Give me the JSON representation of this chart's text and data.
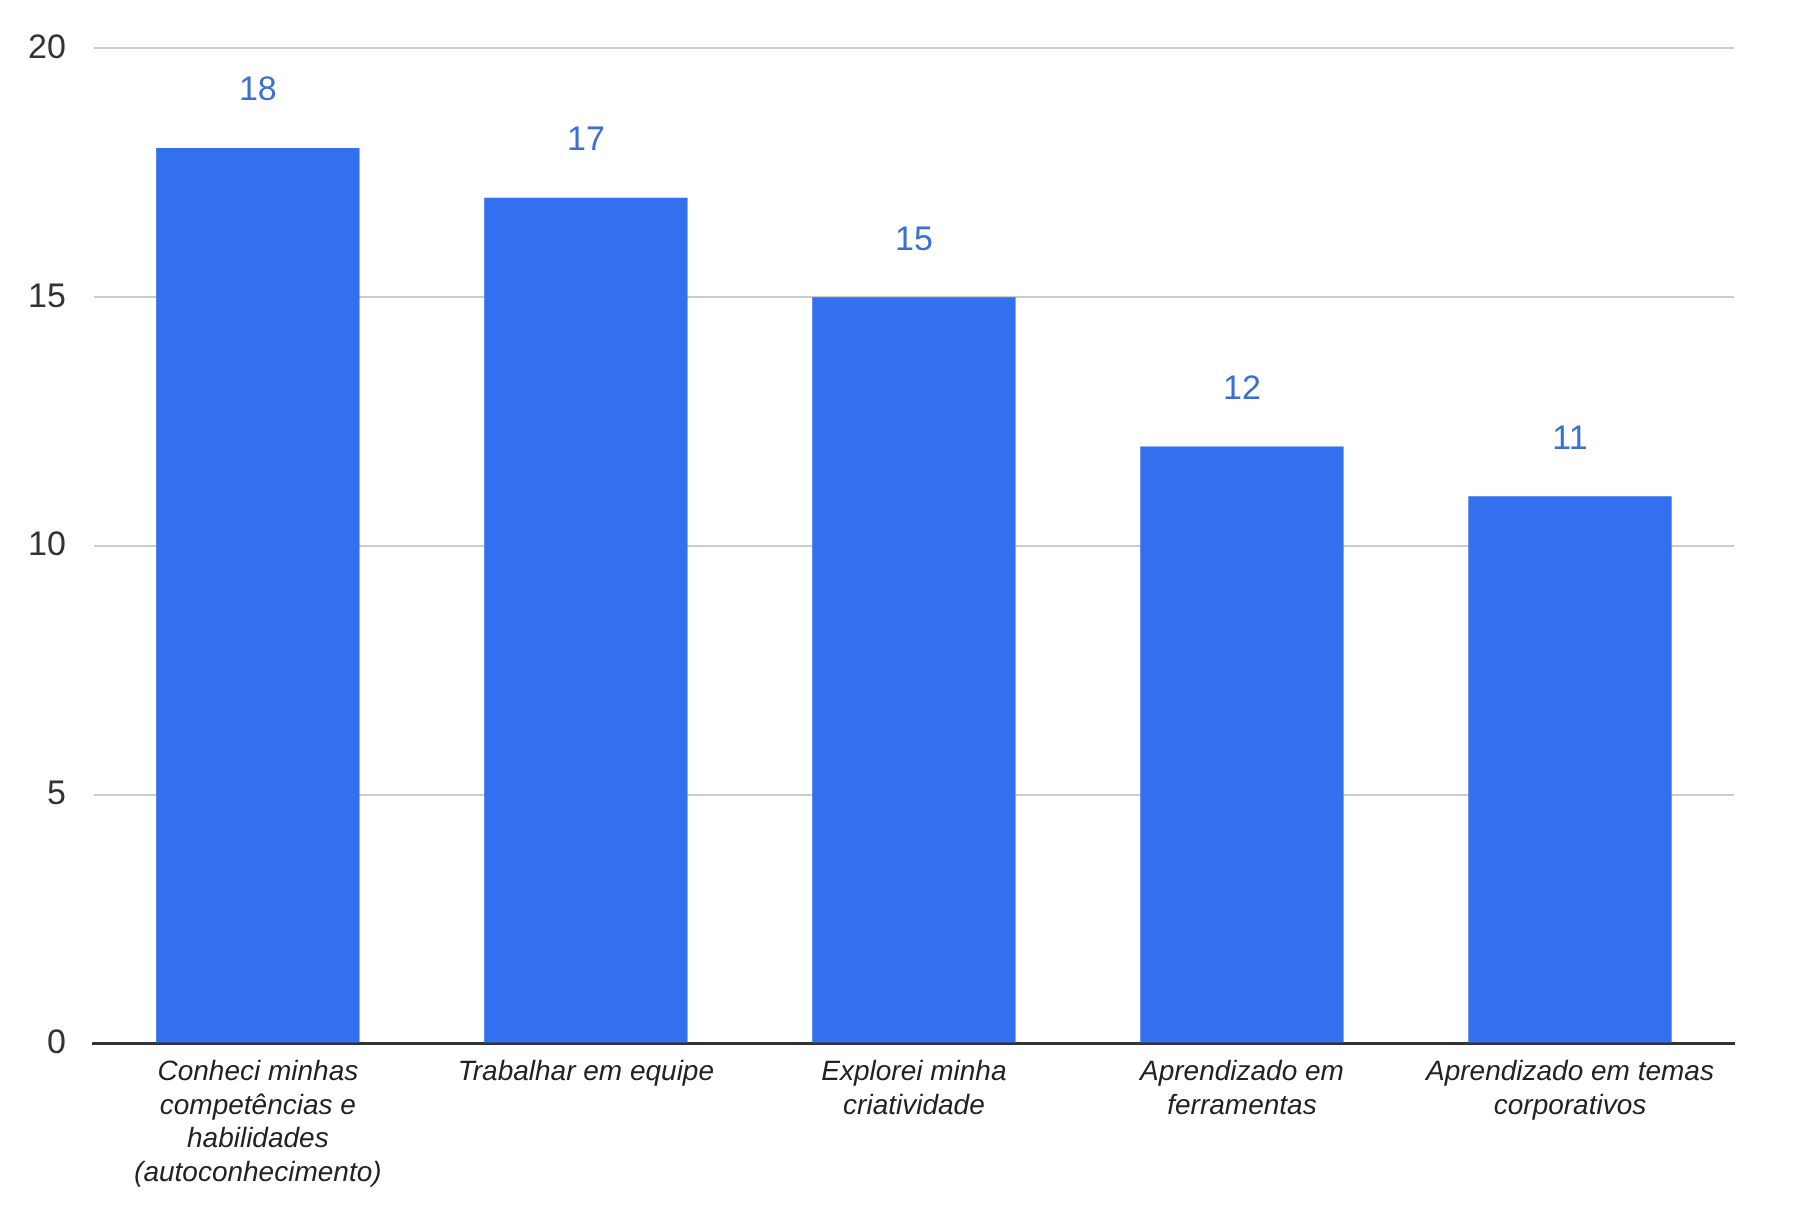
{
  "chart_data": {
    "type": "bar",
    "categories": [
      "Conheci minhas competências e habilidades (autoconhecimento)",
      "Trabalhar em equipe",
      "Explorei minha criatividade",
      "Aprendizado em ferramentas",
      "Aprendizado em temas corporativos"
    ],
    "values": [
      18,
      17,
      15,
      12,
      11
    ],
    "color": "#3370ef",
    "ylim": [
      0,
      20
    ],
    "yticks": [
      0,
      5,
      10,
      15,
      20
    ],
    "grid": "y",
    "data_labels": true,
    "legend": false
  }
}
